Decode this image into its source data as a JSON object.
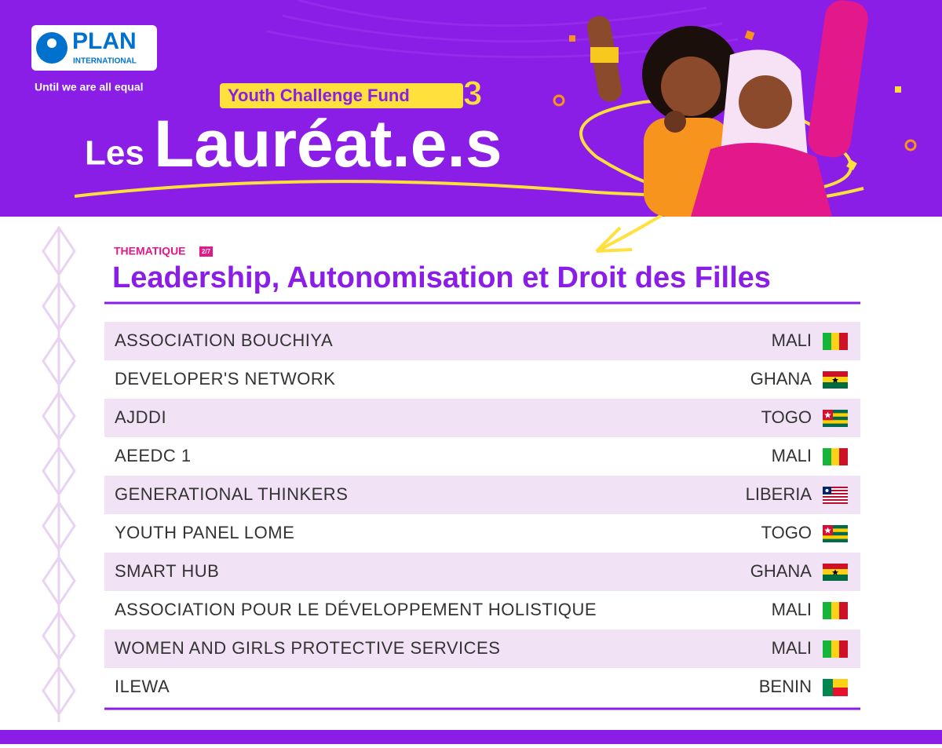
{
  "header": {
    "logo": {
      "name": "PLAN",
      "subtitle": "INTERNATIONAL"
    },
    "tagline": "Until we are all equal",
    "fund": {
      "name": "Youth Challenge Fund",
      "edition": "3"
    },
    "title": {
      "prefix": "Les",
      "main": "Lauréat.e.s"
    }
  },
  "theme": {
    "label": "THEMATIQUE",
    "index": "2/7",
    "title": "Leadership, Autonomisation et Droit des Filles"
  },
  "table": {
    "rows": [
      [
        "ASSOCIATION BOUCHIYA",
        "MALI"
      ],
      [
        "DEVELOPER'S NETWORK",
        "GHANA"
      ],
      [
        "AJDDI",
        "TOGO"
      ],
      [
        "AEEDC 1",
        "MALI"
      ],
      [
        "GENERATIONAL THINKERS",
        "LIBERIA"
      ],
      [
        "YOUTH PANEL LOME",
        "TOGO"
      ],
      [
        "SMART HUB",
        "GHANA"
      ],
      [
        "ASSOCIATION POUR LE DÉVELOPPEMENT HOLISTIQUE",
        "MALI"
      ],
      [
        "WOMEN AND GIRLS PROTECTIVE SERVICES",
        "MALI"
      ],
      [
        "ILEWA",
        "BENIN"
      ]
    ]
  }
}
